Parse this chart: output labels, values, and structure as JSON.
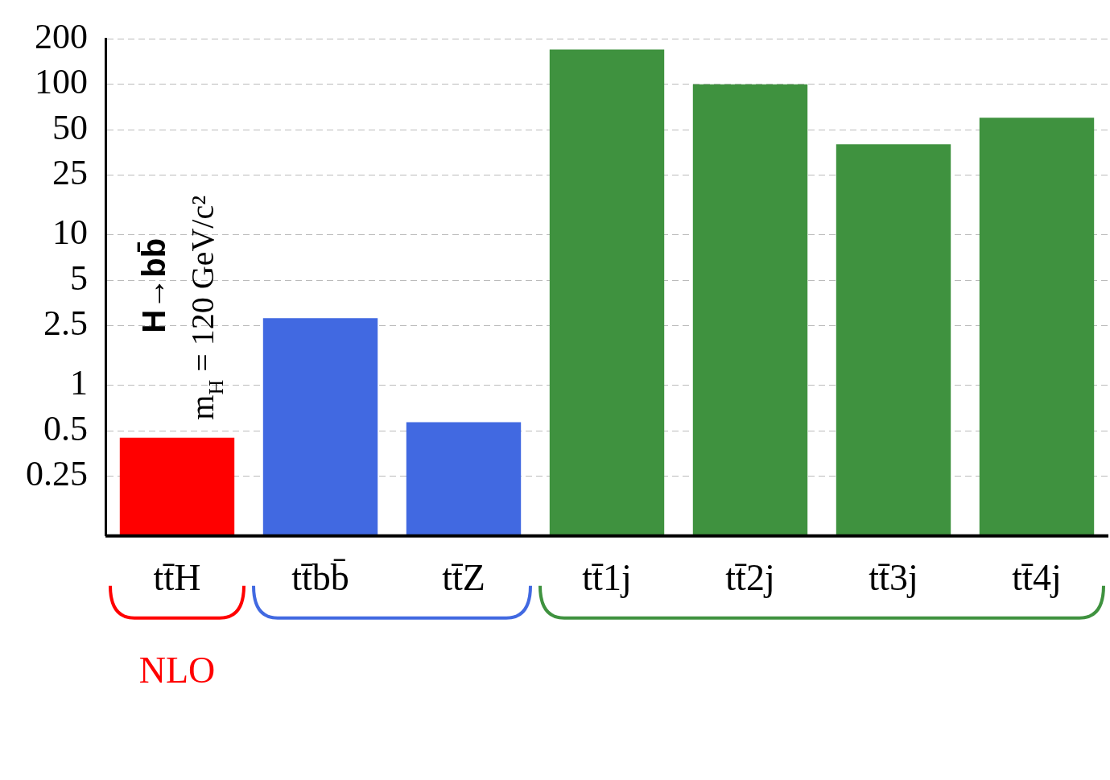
{
  "chart_data": {
    "type": "bar",
    "categories": [
      "tt̄H",
      "tt̄bb̄",
      "tt̄Z",
      "tt̄1j",
      "tt̄2j",
      "tt̄3j",
      "tt̄4j"
    ],
    "values": [
      0.45,
      2.8,
      0.57,
      170,
      100,
      40,
      60
    ],
    "colors": [
      "#ff0000",
      "#4169e1",
      "#4169e1",
      "#3f923f",
      "#3f923f",
      "#3f923f",
      "#3f923f"
    ],
    "log": true,
    "ylim": [
      0.1,
      200
    ],
    "yticks": [
      0.25,
      0.5,
      1,
      2.5,
      5,
      10,
      25,
      50,
      100,
      200
    ],
    "grid": "y",
    "legend": false,
    "annotations": [
      "H→bb̄",
      "m$_{H}$ = 120 GeV/c²",
      "NLO"
    ]
  }
}
